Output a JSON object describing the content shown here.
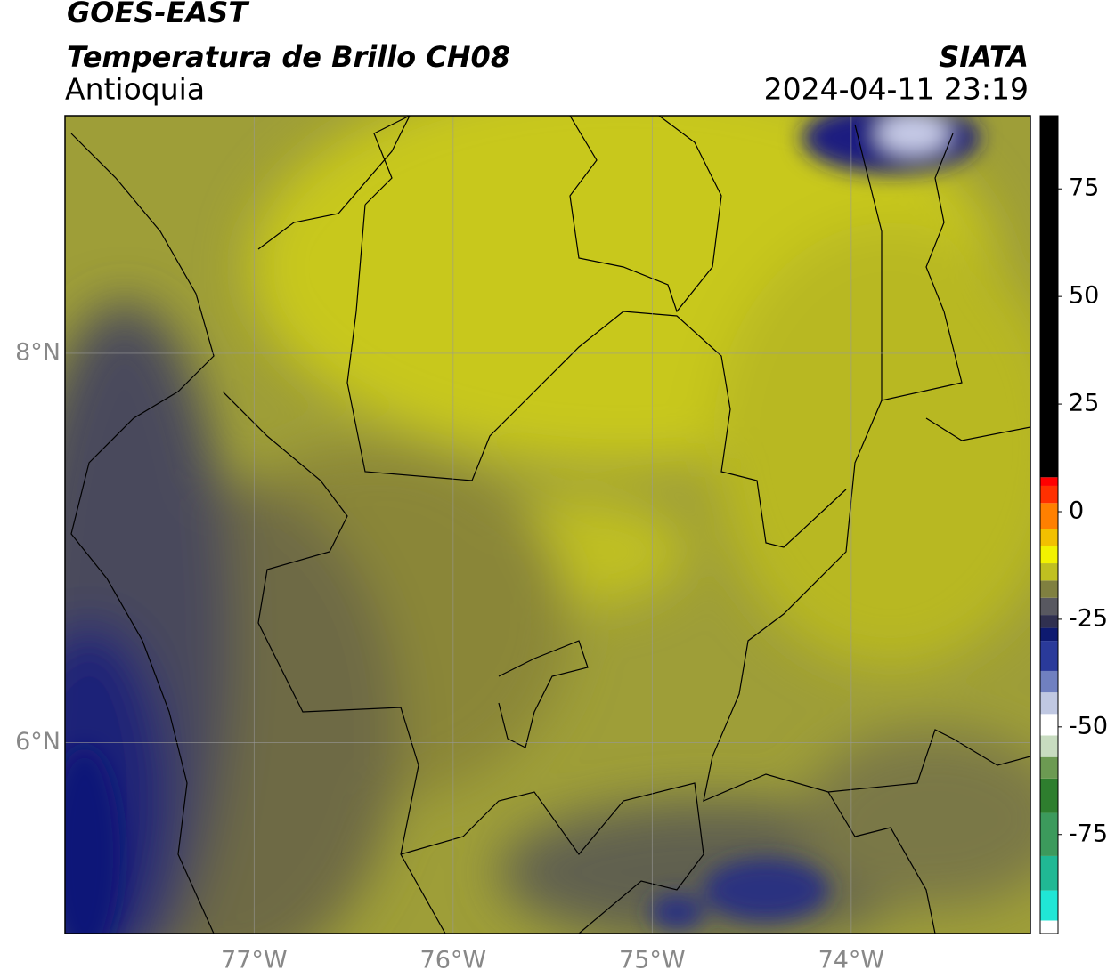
{
  "chart_data": {
    "type": "map",
    "title": "GOES-EAST",
    "subtitle": "Temperatura de Brillo CH08",
    "annotations": [
      "Antioquia",
      "SIATA",
      "2024-04-11 23:19"
    ],
    "xlim": [
      -77.95,
      -73.1
    ],
    "ylim": [
      5.02,
      9.22
    ],
    "xticks": [
      {
        "value": -77,
        "label": "77°W"
      },
      {
        "value": -76,
        "label": "76°W"
      },
      {
        "value": -75,
        "label": "75°W"
      },
      {
        "value": -74,
        "label": "74°W"
      }
    ],
    "yticks": [
      {
        "value": 6,
        "label": "6°N"
      },
      {
        "value": 8,
        "label": "8°N"
      }
    ],
    "grid": true,
    "colorbar": {
      "lim": [
        -98,
        92
      ],
      "ticks": [
        -75,
        -50,
        -25,
        0,
        25,
        50,
        75
      ],
      "stops": [
        {
          "value": -98,
          "color": "#ffffff"
        },
        {
          "value": -95,
          "color": "#20e6d6"
        },
        {
          "value": -88,
          "color": "#20b894"
        },
        {
          "value": -80,
          "color": "#3c9a5c"
        },
        {
          "value": -70,
          "color": "#2e7e2e"
        },
        {
          "value": -62,
          "color": "#6c9a52"
        },
        {
          "value": -57,
          "color": "#c8dcc0"
        },
        {
          "value": -52,
          "color": "#ffffff"
        },
        {
          "value": -47,
          "color": "#c0c8e2"
        },
        {
          "value": -42,
          "color": "#7080c0"
        },
        {
          "value": -37,
          "color": "#2a3a9a"
        },
        {
          "value": -30,
          "color": "#0e1a70"
        },
        {
          "value": -27,
          "color": "#303050"
        },
        {
          "value": -24,
          "color": "#585860"
        },
        {
          "value": -20,
          "color": "#808040"
        },
        {
          "value": -16,
          "color": "#c0c020"
        },
        {
          "value": -12,
          "color": "#f2f200"
        },
        {
          "value": -8,
          "color": "#f2c000"
        },
        {
          "value": -4,
          "color": "#ff8000"
        },
        {
          "value": 2,
          "color": "#ff3000"
        },
        {
          "value": 6,
          "color": "#ff0000"
        },
        {
          "value": 8,
          "color": "#000000"
        }
      ]
    }
  }
}
